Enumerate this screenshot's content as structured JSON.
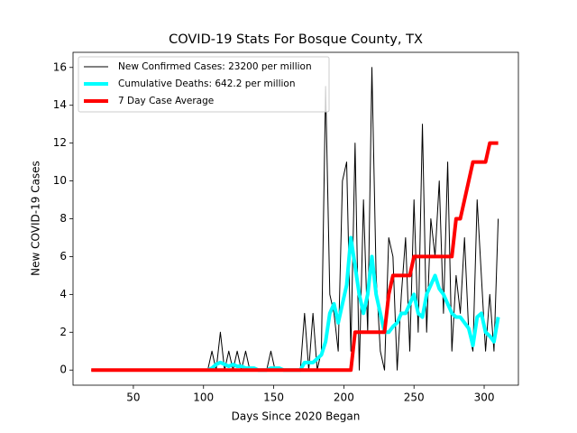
{
  "chart_data": {
    "type": "line",
    "title": "COVID-19 Stats For Bosque County, TX",
    "x_label": "Days Since 2020 Began",
    "y_label": "New COVID-19 Cases",
    "x": [
      20,
      40,
      60,
      80,
      100,
      103,
      106,
      109,
      112,
      115,
      118,
      121,
      124,
      127,
      130,
      133,
      136,
      139,
      142,
      145,
      148,
      151,
      154,
      157,
      160,
      163,
      166,
      169,
      172,
      175,
      178,
      181,
      184,
      187,
      190,
      193,
      196,
      199,
      202,
      205,
      208,
      211,
      214,
      217,
      220,
      223,
      226,
      229,
      232,
      235,
      238,
      241,
      244,
      247,
      250,
      253,
      256,
      259,
      262,
      265,
      268,
      271,
      274,
      277,
      280,
      283,
      286,
      289,
      292,
      295,
      298,
      301,
      304,
      307,
      310
    ],
    "series": [
      {
        "name": "New Confirmed Cases: 23200 per million",
        "color": "#000000",
        "width": 1,
        "values": [
          0,
          0,
          0,
          0,
          0,
          0,
          1,
          0,
          2,
          0,
          1,
          0,
          1,
          0,
          1,
          0,
          0,
          0,
          0,
          0,
          1,
          0,
          0,
          0,
          0,
          0,
          0,
          0,
          3,
          0,
          3,
          0,
          1,
          15,
          4,
          3,
          1,
          10,
          11,
          1,
          12,
          0,
          9,
          2,
          16,
          5,
          1,
          0,
          7,
          6,
          0,
          4,
          7,
          1,
          9,
          2,
          13,
          2,
          8,
          6,
          10,
          3,
          11,
          1,
          5,
          3,
          7,
          2,
          1,
          9,
          5,
          1,
          4,
          1,
          8
        ]
      },
      {
        "name": "Cumulative Deaths: 642.2 per million",
        "color": "#00ffff",
        "width": 4,
        "values": [
          null,
          null,
          null,
          null,
          null,
          0,
          0.1,
          0.3,
          0.4,
          0.3,
          0.2,
          0.3,
          0.2,
          0.2,
          0.1,
          0.1,
          0.1,
          0,
          0,
          0,
          0.1,
          0.1,
          0.1,
          0,
          0,
          0,
          0,
          0,
          0.4,
          0.4,
          0.4,
          0.6,
          0.8,
          1.5,
          3,
          3.5,
          2.5,
          3.5,
          4.5,
          7,
          5.5,
          4,
          3,
          4,
          6,
          4,
          3,
          2,
          2,
          2.3,
          2.5,
          3,
          3,
          3.5,
          4,
          3,
          2.8,
          4,
          4.5,
          5,
          4.3,
          4,
          3.5,
          3,
          2.8,
          2.8,
          2.5,
          2.2,
          1.3,
          2.8,
          3,
          2,
          1.8,
          1.5,
          2.8
        ]
      },
      {
        "name": "7 Day Case Average",
        "color": "#ff0000",
        "width": 4,
        "values": [
          0,
          0,
          0,
          0,
          0,
          0,
          0,
          0,
          0,
          0,
          0,
          0,
          0,
          0,
          0,
          0,
          0,
          0,
          0,
          0,
          0,
          0,
          0,
          0,
          0,
          0,
          0,
          0,
          0,
          0,
          0,
          0,
          0,
          0,
          0,
          0,
          0,
          0,
          0,
          0,
          2,
          2,
          2,
          2,
          2,
          2,
          2,
          2,
          4,
          5,
          5,
          5,
          5,
          5,
          6,
          6,
          6,
          6,
          6,
          6,
          6,
          6,
          6,
          6,
          8,
          8,
          9,
          10,
          11,
          11,
          11,
          11,
          12,
          12,
          12
        ]
      }
    ],
    "xlim": [
      7,
      324.4
    ],
    "xticks": [
      50,
      100,
      150,
      200,
      250,
      300
    ],
    "ylim": [
      -0.8,
      16.8
    ],
    "yticks": [
      0,
      2,
      4,
      6,
      8,
      10,
      12,
      14,
      16
    ],
    "legend": "upper left"
  }
}
